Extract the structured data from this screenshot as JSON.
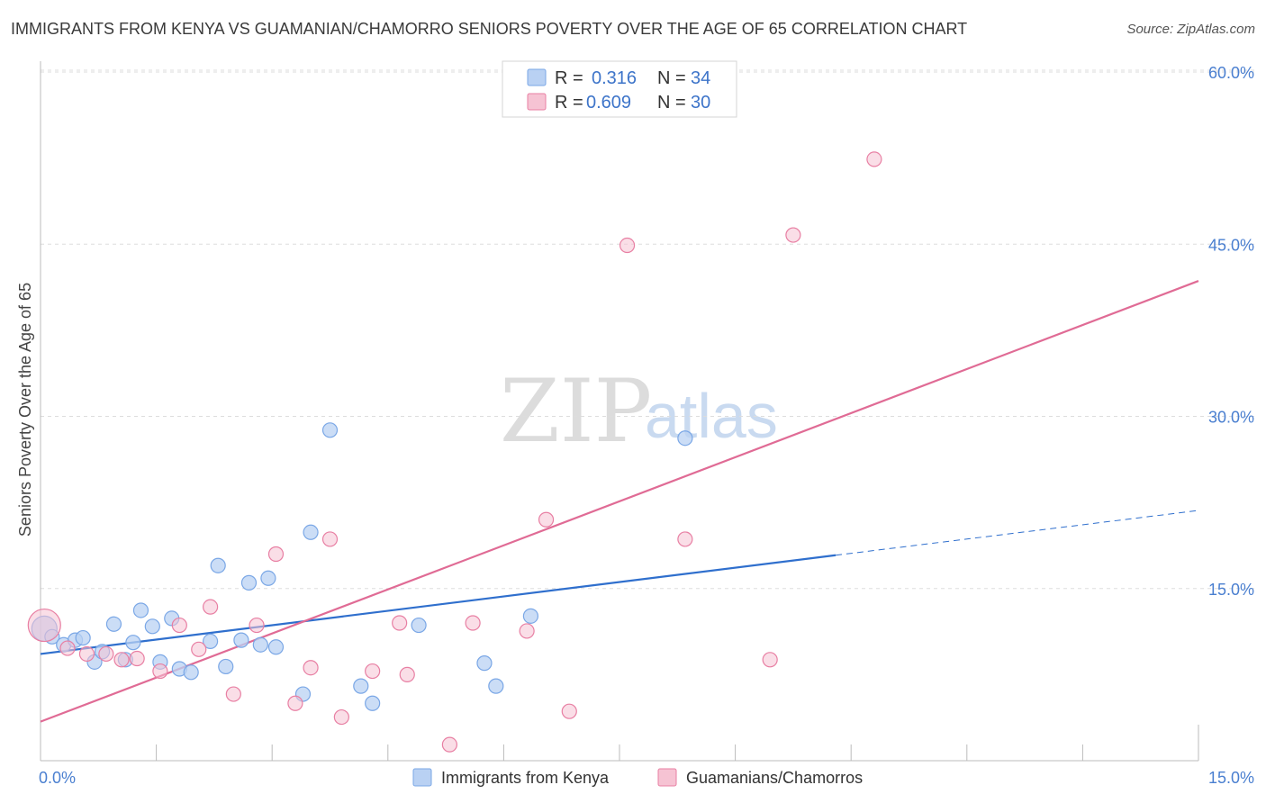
{
  "title": "IMMIGRANTS FROM KENYA VS GUAMANIAN/CHAMORRO SENIORS POVERTY OVER THE AGE OF 65 CORRELATION CHART",
  "source": "Source: ZipAtlas.com",
  "watermark": {
    "zip": "ZIP",
    "atlas": "atlas"
  },
  "legend": {
    "r_label": "R =",
    "n_label": "N =",
    "rows": [
      {
        "r": "0.316",
        "n": "34"
      },
      {
        "r": "0.609",
        "n": "30"
      }
    ]
  },
  "chart_data": {
    "type": "scatter",
    "title": "IMMIGRANTS FROM KENYA VS GUAMANIAN/CHAMORRO SENIORS POVERTY OVER THE AGE OF 65 CORRELATION CHART",
    "xlabel": "",
    "ylabel": "Seniors Poverty Over the Age of 65",
    "xlim": [
      0,
      15
    ],
    "ylim": [
      0,
      60
    ],
    "x_tick_labels": [
      "0.0%",
      "15.0%"
    ],
    "y_ticks": [
      15,
      30,
      45,
      60
    ],
    "y_tick_labels": [
      "15.0%",
      "30.0%",
      "45.0%",
      "60.0%"
    ],
    "grid": true,
    "series": [
      {
        "name": "Immigrants from Kenya",
        "color": "#7aa7e6",
        "fill": "#b9d1f3",
        "r": 0.316,
        "n": 34,
        "points": [
          [
            0.05,
            11.5
          ],
          [
            0.15,
            10.8
          ],
          [
            0.3,
            10.1
          ],
          [
            0.45,
            10.5
          ],
          [
            0.55,
            10.7
          ],
          [
            0.7,
            8.6
          ],
          [
            0.8,
            9.5
          ],
          [
            0.95,
            11.9
          ],
          [
            1.1,
            8.8
          ],
          [
            1.2,
            10.3
          ],
          [
            1.3,
            13.1
          ],
          [
            1.45,
            11.7
          ],
          [
            1.55,
            8.6
          ],
          [
            1.7,
            12.4
          ],
          [
            1.8,
            8.0
          ],
          [
            1.95,
            7.7
          ],
          [
            2.2,
            10.4
          ],
          [
            2.3,
            17.0
          ],
          [
            2.4,
            8.2
          ],
          [
            2.6,
            10.5
          ],
          [
            2.7,
            15.5
          ],
          [
            2.85,
            10.1
          ],
          [
            2.95,
            15.9
          ],
          [
            3.05,
            9.9
          ],
          [
            3.4,
            5.8
          ],
          [
            3.5,
            19.9
          ],
          [
            3.75,
            28.8
          ],
          [
            4.15,
            6.5
          ],
          [
            4.3,
            5.0
          ],
          [
            4.9,
            11.8
          ],
          [
            5.75,
            8.5
          ],
          [
            5.9,
            6.5
          ],
          [
            6.35,
            12.6
          ],
          [
            8.35,
            28.1
          ]
        ],
        "trend": {
          "x": [
            0,
            10.3
          ],
          "y": [
            9.3,
            17.9
          ]
        },
        "trend_extension": {
          "x": [
            10.3,
            15.0
          ],
          "y": [
            17.9,
            21.8
          ]
        }
      },
      {
        "name": "Guamanians/Chamorros",
        "color": "#e87fa3",
        "fill": "#f6c3d3",
        "r": 0.609,
        "n": 30,
        "points": [
          [
            0.05,
            11.8
          ],
          [
            0.35,
            9.8
          ],
          [
            0.6,
            9.3
          ],
          [
            0.85,
            9.3
          ],
          [
            1.05,
            8.8
          ],
          [
            1.25,
            8.9
          ],
          [
            1.55,
            7.8
          ],
          [
            1.8,
            11.8
          ],
          [
            2.05,
            9.7
          ],
          [
            2.2,
            13.4
          ],
          [
            2.5,
            5.8
          ],
          [
            2.8,
            11.8
          ],
          [
            3.05,
            18.0
          ],
          [
            3.3,
            5.0
          ],
          [
            3.5,
            8.1
          ],
          [
            3.75,
            19.3
          ],
          [
            3.9,
            3.8
          ],
          [
            4.3,
            7.8
          ],
          [
            4.65,
            12.0
          ],
          [
            4.75,
            7.5
          ],
          [
            5.3,
            1.4
          ],
          [
            5.6,
            12.0
          ],
          [
            6.3,
            11.3
          ],
          [
            6.55,
            21.0
          ],
          [
            6.85,
            4.3
          ],
          [
            7.6,
            44.9
          ],
          [
            8.35,
            19.3
          ],
          [
            9.45,
            8.8
          ],
          [
            9.75,
            45.8
          ],
          [
            10.8,
            52.4
          ]
        ],
        "trend": {
          "x": [
            0,
            15.0
          ],
          "y": [
            3.4,
            41.8
          ]
        }
      }
    ],
    "bottom_legend": [
      "Immigrants from Kenya",
      "Guamanians/Chamorros"
    ]
  }
}
